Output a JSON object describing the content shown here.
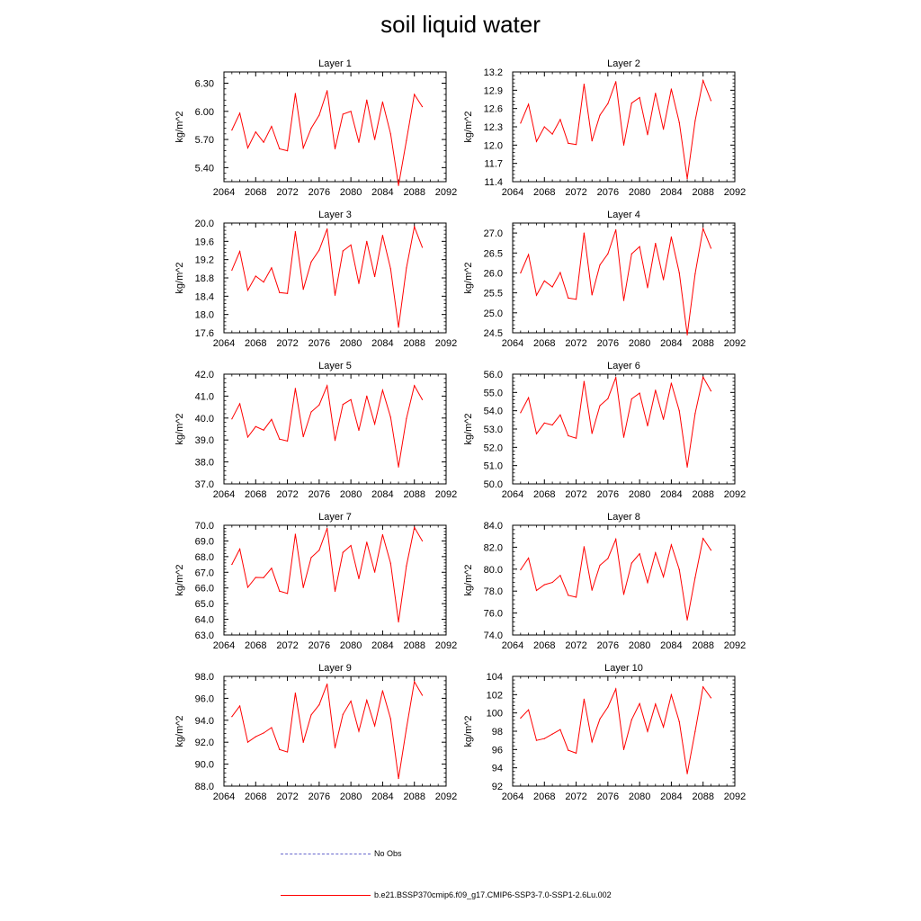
{
  "title": "soil liquid water",
  "legend": [
    {
      "label": "No Obs",
      "color": "#6666cc",
      "style": "dashed"
    },
    {
      "label": "b.e21.BSSP370cmip6.f09_g17.CMIP6-SSP3-7.0-SSP1-2.6Lu.002",
      "color": "#ff0000",
      "style": "solid"
    }
  ],
  "chart_data": [
    {
      "type": "line",
      "title": "Layer 1",
      "ylabel": "kg/m^2",
      "xlim": [
        2064,
        2092
      ],
      "ylim": [
        5.25,
        6.42
      ],
      "x_ticks": [
        "2064",
        "2068",
        "2072",
        "2076",
        "2080",
        "2084",
        "2088",
        "2092"
      ],
      "y_ticks": [
        "5.40",
        "5.70",
        "6.00",
        "6.30"
      ],
      "series": [
        {
          "color": "#ff0000",
          "x": [
            2065,
            2066,
            2067,
            2068,
            2069,
            2070,
            2071,
            2072,
            2073,
            2074,
            2075,
            2076,
            2077,
            2078,
            2079,
            2080,
            2081,
            2082,
            2083,
            2084,
            2085,
            2086,
            2087,
            2088,
            2089
          ],
          "y": [
            5.8,
            5.98,
            5.61,
            5.78,
            5.67,
            5.84,
            5.6,
            5.58,
            6.19,
            5.61,
            5.82,
            5.96,
            6.22,
            5.6,
            5.97,
            6.0,
            5.67,
            6.12,
            5.7,
            6.1,
            5.76,
            5.21,
            5.69,
            6.18,
            6.05
          ]
        }
      ]
    },
    {
      "type": "line",
      "title": "Layer 2",
      "ylabel": "kg/m^2",
      "xlim": [
        2064,
        2092
      ],
      "ylim": [
        11.4,
        13.2
      ],
      "x_ticks": [
        "2064",
        "2068",
        "2072",
        "2076",
        "2080",
        "2084",
        "2088",
        "2092"
      ],
      "y_ticks": [
        "11.4",
        "11.7",
        "12.0",
        "12.3",
        "12.6",
        "12.9",
        "13.2"
      ],
      "series": [
        {
          "color": "#ff0000",
          "x": [
            2065,
            2066,
            2067,
            2068,
            2069,
            2070,
            2071,
            2072,
            2073,
            2074,
            2075,
            2076,
            2077,
            2078,
            2079,
            2080,
            2081,
            2082,
            2083,
            2084,
            2085,
            2086,
            2087,
            2088,
            2089
          ],
          "y": [
            12.36,
            12.67,
            12.06,
            12.3,
            12.18,
            12.42,
            12.03,
            12.01,
            13.0,
            12.07,
            12.49,
            12.68,
            13.04,
            12.0,
            12.69,
            12.78,
            12.17,
            12.85,
            12.26,
            12.92,
            12.37,
            11.45,
            12.4,
            13.06,
            12.73
          ]
        }
      ]
    },
    {
      "type": "line",
      "title": "Layer 3",
      "ylabel": "kg/m^2",
      "xlim": [
        2064,
        2092
      ],
      "ylim": [
        17.6,
        20.0
      ],
      "x_ticks": [
        "2064",
        "2068",
        "2072",
        "2076",
        "2080",
        "2084",
        "2088",
        "2092"
      ],
      "y_ticks": [
        "17.6",
        "18.0",
        "18.4",
        "18.8",
        "19.2",
        "19.6",
        "20.0"
      ],
      "series": [
        {
          "color": "#ff0000",
          "x": [
            2065,
            2066,
            2067,
            2068,
            2069,
            2070,
            2071,
            2072,
            2073,
            2074,
            2075,
            2076,
            2077,
            2078,
            2079,
            2080,
            2081,
            2082,
            2083,
            2084,
            2085,
            2086,
            2087,
            2088,
            2089
          ],
          "y": [
            18.97,
            19.38,
            18.53,
            18.84,
            18.71,
            19.02,
            18.48,
            18.46,
            19.81,
            18.55,
            19.15,
            19.41,
            19.87,
            18.42,
            19.39,
            19.52,
            18.68,
            19.6,
            18.83,
            19.73,
            19.0,
            17.72,
            19.02,
            19.92,
            19.47
          ]
        }
      ]
    },
    {
      "type": "line",
      "title": "Layer 4",
      "ylabel": "kg/m^2",
      "xlim": [
        2064,
        2092
      ],
      "ylim": [
        24.5,
        27.25
      ],
      "x_ticks": [
        "2064",
        "2068",
        "2072",
        "2076",
        "2080",
        "2084",
        "2088",
        "2092"
      ],
      "y_ticks": [
        "24.5",
        "25.0",
        "25.5",
        "26.0",
        "26.5",
        "27.0"
      ],
      "series": [
        {
          "color": "#ff0000",
          "x": [
            2065,
            2066,
            2067,
            2068,
            2069,
            2070,
            2071,
            2072,
            2073,
            2074,
            2075,
            2076,
            2077,
            2078,
            2079,
            2080,
            2081,
            2082,
            2083,
            2084,
            2085,
            2086,
            2087,
            2088,
            2089
          ],
          "y": [
            26.0,
            26.46,
            25.44,
            25.8,
            25.65,
            26.01,
            25.37,
            25.34,
            27.0,
            25.45,
            26.2,
            26.48,
            27.08,
            25.31,
            26.48,
            26.66,
            25.63,
            26.74,
            25.83,
            26.9,
            26.0,
            24.45,
            25.98,
            27.11,
            26.62
          ]
        }
      ]
    },
    {
      "type": "line",
      "title": "Layer 5",
      "ylabel": "kg/m^2",
      "xlim": [
        2064,
        2092
      ],
      "ylim": [
        37.0,
        42.0
      ],
      "x_ticks": [
        "2064",
        "2068",
        "2072",
        "2076",
        "2080",
        "2084",
        "2088",
        "2092"
      ],
      "y_ticks": [
        "37.0",
        "38.0",
        "39.0",
        "40.0",
        "41.0",
        "42.0"
      ],
      "series": [
        {
          "color": "#ff0000",
          "x": [
            2065,
            2066,
            2067,
            2068,
            2069,
            2070,
            2071,
            2072,
            2073,
            2074,
            2075,
            2076,
            2077,
            2078,
            2079,
            2080,
            2081,
            2082,
            2083,
            2084,
            2085,
            2086,
            2087,
            2088,
            2089
          ],
          "y": [
            39.96,
            40.65,
            39.13,
            39.61,
            39.45,
            39.94,
            39.04,
            38.95,
            41.35,
            39.15,
            40.28,
            40.6,
            41.47,
            38.98,
            40.62,
            40.84,
            39.44,
            41.0,
            39.73,
            41.27,
            40.04,
            37.77,
            39.98,
            41.48,
            40.84
          ]
        }
      ]
    },
    {
      "type": "line",
      "title": "Layer 6",
      "ylabel": "kg/m^2",
      "xlim": [
        2064,
        2092
      ],
      "ylim": [
        50.0,
        56.0
      ],
      "x_ticks": [
        "2064",
        "2068",
        "2072",
        "2076",
        "2080",
        "2084",
        "2088",
        "2092"
      ],
      "y_ticks": [
        "50.0",
        "51.0",
        "52.0",
        "53.0",
        "54.0",
        "55.0",
        "56.0"
      ],
      "series": [
        {
          "color": "#ff0000",
          "x": [
            2065,
            2066,
            2067,
            2068,
            2069,
            2070,
            2071,
            2072,
            2073,
            2074,
            2075,
            2076,
            2077,
            2078,
            2079,
            2080,
            2081,
            2082,
            2083,
            2084,
            2085,
            2086,
            2087,
            2088,
            2089
          ],
          "y": [
            53.89,
            54.71,
            52.74,
            53.33,
            53.22,
            53.77,
            52.63,
            52.5,
            55.6,
            52.76,
            54.28,
            54.66,
            55.82,
            52.55,
            54.65,
            54.96,
            53.17,
            55.12,
            53.53,
            55.51,
            53.99,
            50.92,
            53.85,
            55.84,
            55.08
          ]
        }
      ]
    },
    {
      "type": "line",
      "title": "Layer 7",
      "ylabel": "kg/m^2",
      "xlim": [
        2064,
        2092
      ],
      "ylim": [
        63.0,
        70.0
      ],
      "x_ticks": [
        "2064",
        "2068",
        "2072",
        "2076",
        "2080",
        "2084",
        "2088",
        "2092"
      ],
      "y_ticks": [
        "63.0",
        "64.0",
        "65.0",
        "66.0",
        "67.0",
        "68.0",
        "69.0",
        "70.0"
      ],
      "series": [
        {
          "color": "#ff0000",
          "x": [
            2065,
            2066,
            2067,
            2068,
            2069,
            2070,
            2071,
            2072,
            2073,
            2074,
            2075,
            2076,
            2077,
            2078,
            2079,
            2080,
            2081,
            2082,
            2083,
            2084,
            2085,
            2086,
            2087,
            2088,
            2089
          ],
          "y": [
            67.5,
            68.48,
            66.04,
            66.67,
            66.66,
            67.26,
            65.8,
            65.65,
            69.43,
            66.03,
            67.94,
            68.41,
            69.8,
            65.78,
            68.27,
            68.71,
            66.59,
            68.92,
            67.01,
            69.4,
            67.58,
            63.83,
            67.41,
            69.86,
            69.0
          ]
        }
      ]
    },
    {
      "type": "line",
      "title": "Layer 8",
      "ylabel": "kg/m^2",
      "xlim": [
        2064,
        2092
      ],
      "ylim": [
        74.0,
        84.0
      ],
      "x_ticks": [
        "2064",
        "2068",
        "2072",
        "2076",
        "2080",
        "2084",
        "2088",
        "2092"
      ],
      "y_ticks": [
        "74.0",
        "76.0",
        "78.0",
        "80.0",
        "82.0",
        "84.0"
      ],
      "series": [
        {
          "color": "#ff0000",
          "x": [
            2065,
            2066,
            2067,
            2068,
            2069,
            2070,
            2071,
            2072,
            2073,
            2074,
            2075,
            2076,
            2077,
            2078,
            2079,
            2080,
            2081,
            2082,
            2083,
            2084,
            2085,
            2086,
            2087,
            2088,
            2089
          ],
          "y": [
            79.94,
            81.01,
            78.06,
            78.58,
            78.79,
            79.43,
            77.62,
            77.44,
            82.04,
            78.09,
            80.35,
            80.97,
            82.73,
            77.7,
            80.56,
            81.4,
            78.78,
            81.49,
            79.3,
            82.21,
            79.95,
            75.37,
            79.24,
            82.8,
            81.73
          ]
        }
      ]
    },
    {
      "type": "line",
      "title": "Layer 9",
      "ylabel": "kg/m^2",
      "xlim": [
        2064,
        2092
      ],
      "ylim": [
        88.0,
        98.0
      ],
      "x_ticks": [
        "2064",
        "2068",
        "2072",
        "2076",
        "2080",
        "2084",
        "2088",
        "2092"
      ],
      "y_ticks": [
        "88.0",
        "90.0",
        "92.0",
        "94.0",
        "96.0",
        "98.0"
      ],
      "series": [
        {
          "color": "#ff0000",
          "x": [
            2065,
            2066,
            2067,
            2068,
            2069,
            2070,
            2071,
            2072,
            2073,
            2074,
            2075,
            2076,
            2077,
            2078,
            2079,
            2080,
            2081,
            2082,
            2083,
            2084,
            2085,
            2086,
            2087,
            2088,
            2089
          ],
          "y": [
            94.33,
            95.3,
            92.0,
            92.5,
            92.84,
            93.33,
            91.34,
            91.11,
            96.48,
            91.99,
            94.49,
            95.41,
            97.3,
            91.48,
            94.53,
            95.75,
            93.0,
            95.82,
            93.49,
            96.69,
            94.14,
            88.69,
            93.26,
            97.52,
            96.28
          ]
        }
      ]
    },
    {
      "type": "line",
      "title": "Layer 10",
      "ylabel": "kg/m^2",
      "xlim": [
        2064,
        2092
      ],
      "ylim": [
        92,
        104
      ],
      "x_ticks": [
        "2064",
        "2068",
        "2072",
        "2076",
        "2080",
        "2084",
        "2088",
        "2092"
      ],
      "y_ticks": [
        "92",
        "94",
        "96",
        "98",
        "100",
        "102",
        "104"
      ],
      "series": [
        {
          "color": "#ff0000",
          "x": [
            2065,
            2066,
            2067,
            2068,
            2069,
            2070,
            2071,
            2072,
            2073,
            2074,
            2075,
            2076,
            2077,
            2078,
            2079,
            2080,
            2081,
            2082,
            2083,
            2084,
            2085,
            2086,
            2087,
            2088,
            2089
          ],
          "y": [
            99.44,
            100.34,
            97.0,
            97.19,
            97.69,
            98.18,
            95.92,
            95.6,
            101.51,
            96.84,
            99.34,
            100.65,
            102.62,
            95.99,
            99.26,
            101.02,
            97.98,
            100.97,
            98.46,
            101.98,
            99.03,
            93.36,
            97.99,
            102.85,
            101.65
          ]
        }
      ]
    }
  ]
}
